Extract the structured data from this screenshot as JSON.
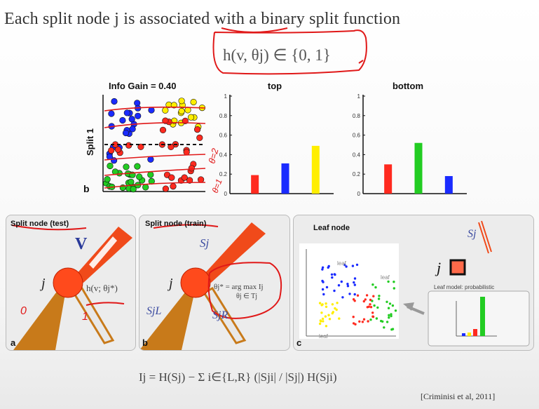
{
  "title": "Each split node j is associated with a binary split function",
  "split_function": "h(v, θj) ∈ {0, 1}",
  "top_figure": {
    "panel_letter": "b",
    "ylabel": "Split 1",
    "info_gain": "Info Gain = 0.40",
    "annotations": [
      "θ=2",
      "θ=1"
    ]
  },
  "chart_data": [
    {
      "type": "bar",
      "title": "top",
      "categories": [
        "red",
        "blue",
        "yellow"
      ],
      "values": [
        0.19,
        0.31,
        0.49
      ],
      "colors": [
        "#ff2a1f",
        "#1a2bff",
        "#ffee00"
      ],
      "ylim": [
        0,
        1
      ],
      "yticks": [
        "0",
        "0.2",
        "0.4",
        "0.6",
        "0.8",
        "1"
      ]
    },
    {
      "type": "bar",
      "title": "bottom",
      "categories": [
        "red",
        "green",
        "blue"
      ],
      "values": [
        0.3,
        0.52,
        0.18
      ],
      "colors": [
        "#ff2a1f",
        "#22cc22",
        "#1a2bff"
      ],
      "ylim": [
        0,
        1
      ],
      "yticks": [
        "0",
        "0.2",
        "0.4",
        "0.6",
        "0.8",
        "1"
      ]
    }
  ],
  "panel_a": {
    "label": "Split node (test)",
    "letter": "a",
    "node": "j",
    "v": "V",
    "h": "h(v; θj*)",
    "anno_left": "0",
    "anno_right": "1"
  },
  "panel_b": {
    "label": "Split node (train)",
    "letter": "b",
    "node": "j",
    "s": "Sj",
    "sl": "SjL",
    "sr": "SjR",
    "theta": "θj* = arg max Ij",
    "theta_sub": "θj ∈ Tj"
  },
  "panel_c": {
    "label": "Leaf node",
    "letter": "c",
    "leaf": "leaf",
    "node": "j",
    "s": "Sj",
    "model_label": "Leaf model: probabilistic"
  },
  "bottom_equation": "Ij = H(Sj) − Σ i∈{L,R} (|Sji| / |Sj|) H(Sji)",
  "citation": "[Criminisi et al, 2011]",
  "colors": {
    "red": "#ff2a1f",
    "blue": "#1a2bff",
    "green": "#22cc22",
    "yellow": "#ffee00",
    "orange_node": "#ff4a1c",
    "annotation_red": "#e01818"
  }
}
